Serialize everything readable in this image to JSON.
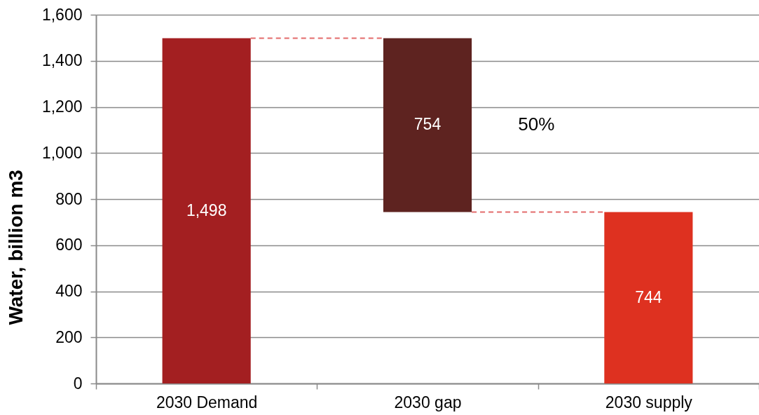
{
  "chart_data": {
    "type": "bar",
    "ylabel": "Water, billion m3",
    "categories": [
      "2030 Demand",
      "2030 gap",
      "2030 supply"
    ],
    "values": [
      1498,
      754,
      744
    ],
    "base": [
      0,
      744,
      0
    ],
    "colors": [
      "#a31f21",
      "#5e2320",
      "#de3120"
    ],
    "value_labels": [
      "1,498",
      "754",
      "744"
    ],
    "ylim": [
      0,
      1600
    ],
    "yticks": [
      0,
      200,
      400,
      600,
      800,
      {
        "value": 1000,
        "label": "1,000"
      },
      {
        "value": 1200,
        "label": "1,200"
      },
      {
        "value": 1400,
        "label": "1,400"
      },
      {
        "value": 1600,
        "label": "1,600"
      }
    ],
    "grid": "y",
    "ref_lines": [
      {
        "axis": "y",
        "value": 1498,
        "color": "#e36b6b",
        "line_style": "dashed"
      },
      {
        "axis": "y",
        "value": 744,
        "color": "#e36b6b",
        "line_style": "dashed"
      }
    ],
    "annotations": [
      "50%"
    ]
  }
}
